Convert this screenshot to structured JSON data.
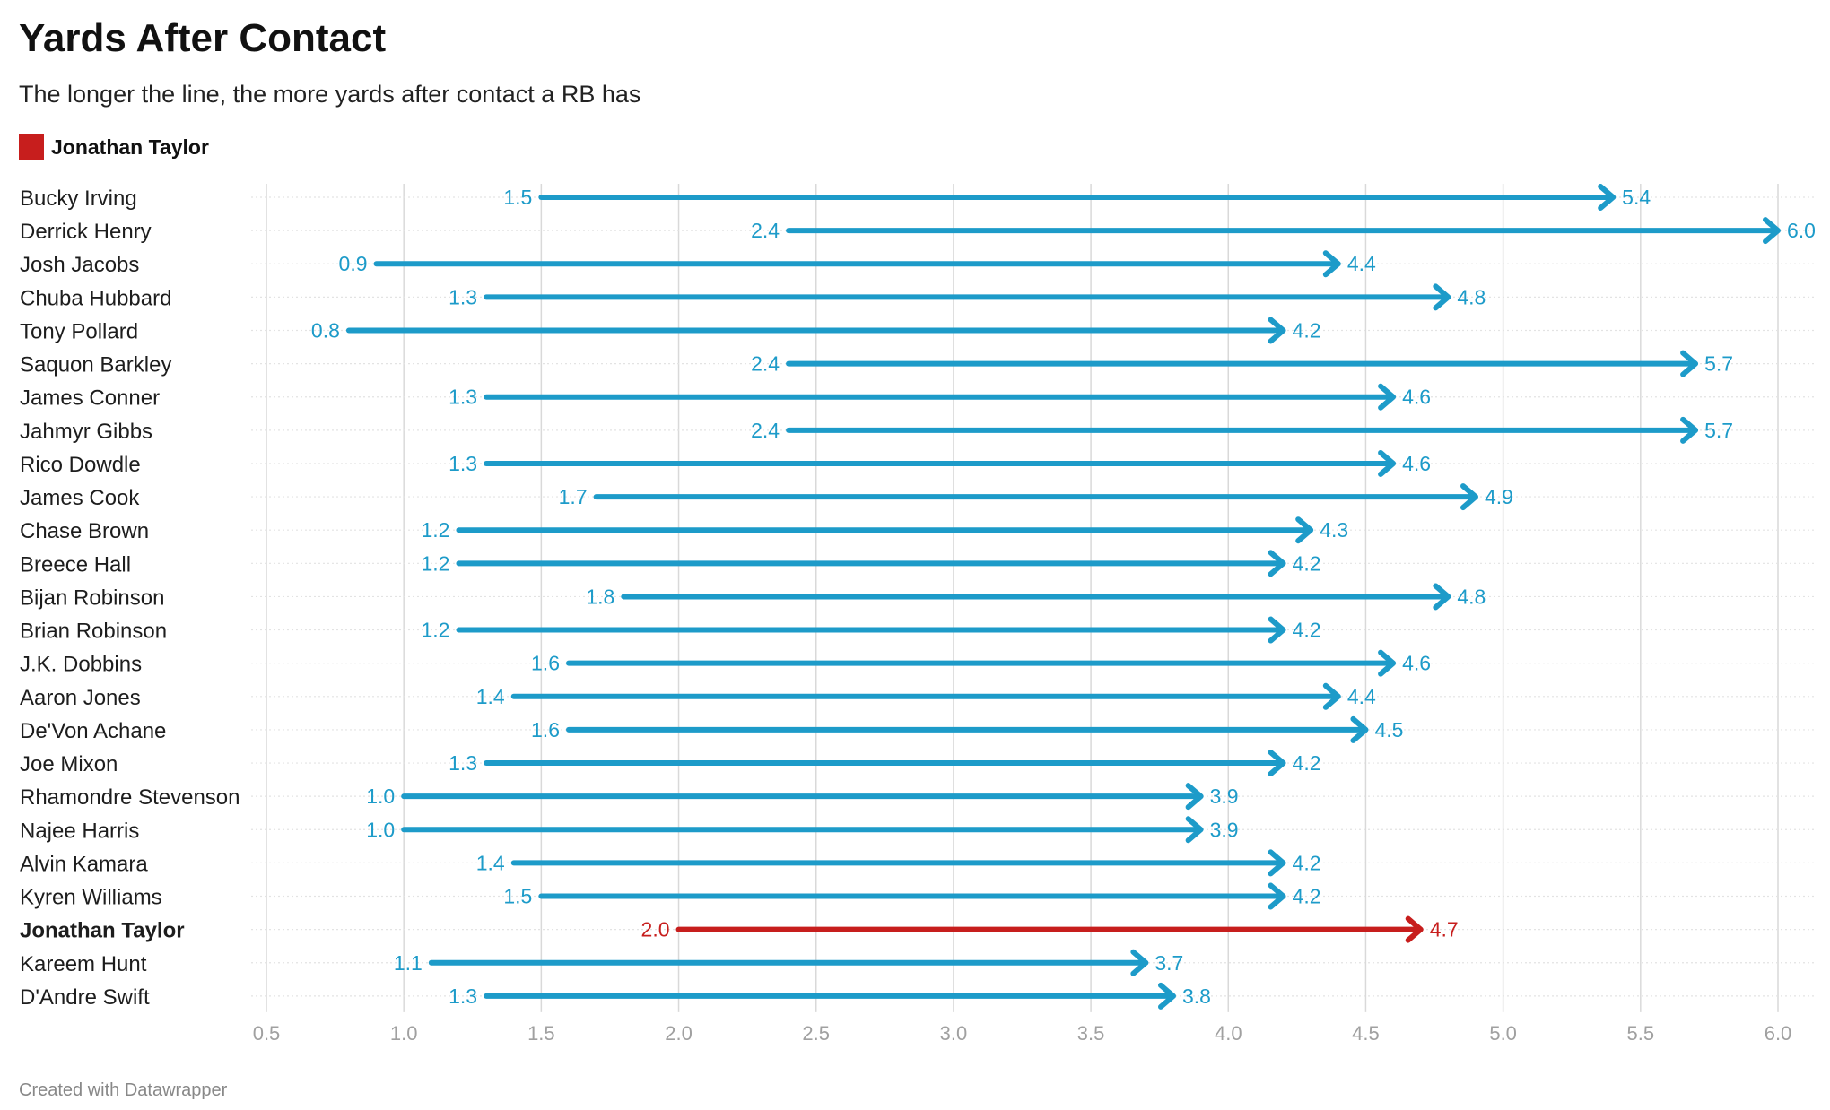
{
  "title": "Yards After Contact",
  "subtitle": "The longer the line, the more yards after contact a RB has",
  "legend": {
    "label": "Jonathan Taylor",
    "color": "#c71e1d"
  },
  "footer": "Created with Datawrapper",
  "colors": {
    "default": "#1d9bc9",
    "highlight": "#c71e1d",
    "grid": "#d9d9d9",
    "tick": "#a0a0a0"
  },
  "chart_data": {
    "type": "arrow",
    "title": "Yards After Contact",
    "subtitle": "The longer the line, the more yards after contact a RB has",
    "xlim": [
      0.5,
      6.0
    ],
    "xticks": [
      0.5,
      1.0,
      1.5,
      2.0,
      2.5,
      3.0,
      3.5,
      4.0,
      4.5,
      5.0,
      5.5,
      6.0
    ],
    "highlight": "Jonathan Taylor",
    "series": [
      {
        "name": "Bucky Irving",
        "start": 1.5,
        "end": 5.4
      },
      {
        "name": "Derrick Henry",
        "start": 2.4,
        "end": 6.0
      },
      {
        "name": "Josh Jacobs",
        "start": 0.9,
        "end": 4.4
      },
      {
        "name": "Chuba Hubbard",
        "start": 1.3,
        "end": 4.8
      },
      {
        "name": "Tony Pollard",
        "start": 0.8,
        "end": 4.2
      },
      {
        "name": "Saquon Barkley",
        "start": 2.4,
        "end": 5.7
      },
      {
        "name": "James Conner",
        "start": 1.3,
        "end": 4.6
      },
      {
        "name": "Jahmyr Gibbs",
        "start": 2.4,
        "end": 5.7
      },
      {
        "name": "Rico Dowdle",
        "start": 1.3,
        "end": 4.6
      },
      {
        "name": "James Cook",
        "start": 1.7,
        "end": 4.9
      },
      {
        "name": "Chase Brown",
        "start": 1.2,
        "end": 4.3
      },
      {
        "name": "Breece Hall",
        "start": 1.2,
        "end": 4.2
      },
      {
        "name": "Bijan Robinson",
        "start": 1.8,
        "end": 4.8
      },
      {
        "name": "Brian Robinson",
        "start": 1.2,
        "end": 4.2
      },
      {
        "name": "J.K. Dobbins",
        "start": 1.6,
        "end": 4.6
      },
      {
        "name": "Aaron Jones",
        "start": 1.4,
        "end": 4.4
      },
      {
        "name": "De'Von Achane",
        "start": 1.6,
        "end": 4.5
      },
      {
        "name": "Joe Mixon",
        "start": 1.3,
        "end": 4.2
      },
      {
        "name": "Rhamondre Stevenson",
        "start": 1.0,
        "end": 3.9
      },
      {
        "name": "Najee Harris",
        "start": 1.0,
        "end": 3.9
      },
      {
        "name": "Alvin Kamara",
        "start": 1.4,
        "end": 4.2
      },
      {
        "name": "Kyren Williams",
        "start": 1.5,
        "end": 4.2
      },
      {
        "name": "Jonathan Taylor",
        "start": 2.0,
        "end": 4.7
      },
      {
        "name": "Kareem Hunt",
        "start": 1.1,
        "end": 3.7
      },
      {
        "name": "D'Andre Swift",
        "start": 1.3,
        "end": 3.8
      }
    ]
  }
}
